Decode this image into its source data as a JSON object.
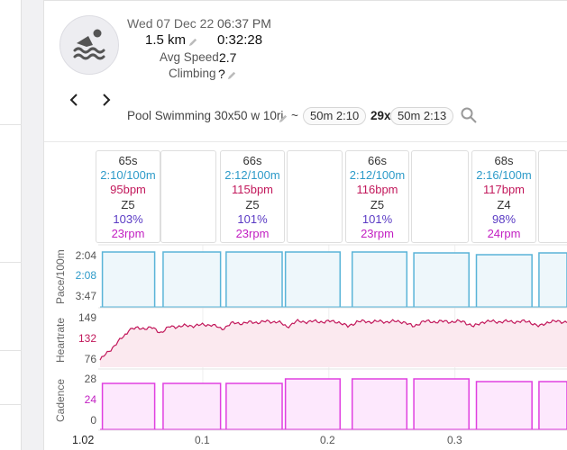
{
  "activity": {
    "date": "Wed 07 Dec 22",
    "time": "06:37 PM",
    "distance": "1.5 km",
    "duration": "0:32:28",
    "avg_speed_label": "Avg Speed",
    "avg_speed_value": "2.7",
    "climbing_label": "Climbing",
    "climbing_value": "?",
    "icon": "swimmer-icon"
  },
  "workout": {
    "name": "Pool Swimming 30x50 w 10ri",
    "tilde": "~",
    "chip1": "50m 2:10",
    "repeat": "29x",
    "chip2": "50m 2:13"
  },
  "cards": [
    {
      "dur": "65s",
      "pace": "2:10/100m",
      "hr": "95bpm",
      "zone": "Z5",
      "pct": "103%",
      "rpm": "23rpm"
    },
    {
      "dur": "66s",
      "pace": "2:12/100m",
      "hr": "115bpm",
      "zone": "Z5",
      "pct": "101%",
      "rpm": "23rpm"
    },
    {
      "dur": "66s",
      "pace": "2:12/100m",
      "hr": "116bpm",
      "zone": "Z5",
      "pct": "101%",
      "rpm": "23rpm"
    },
    {
      "dur": "68s",
      "pace": "2:16/100m",
      "hr": "117bpm",
      "zone": "Z4",
      "pct": "98%",
      "rpm": "24rpm"
    }
  ],
  "colors": {
    "pace": "#5ab4d8",
    "pace_fill": "#eef7fb",
    "hr": "#c2185b",
    "hr_fill": "#fbe9ef",
    "cadence": "#e040e0",
    "cadence_fill": "#fde8fd",
    "rest_band": "#f2f2f2"
  },
  "chart_data": [
    {
      "type": "area",
      "ylabel": "Pace/100m",
      "yticks": [
        "2:04",
        "2:08",
        "3:47"
      ],
      "highlight_tick": "2:08",
      "segments": [
        [
          0.0,
          0.035,
          "2:04"
        ],
        [
          0.065,
          0.115,
          "2:05"
        ],
        [
          0.13,
          0.18,
          "2:05"
        ],
        [
          0.195,
          0.255,
          "2:05"
        ],
        [
          0.265,
          0.325,
          "2:04"
        ],
        [
          0.345,
          0.395,
          "2:05"
        ],
        [
          0.41,
          0.46,
          "2:08"
        ],
        [
          0.475,
          0.53,
          "2:07"
        ]
      ]
    },
    {
      "type": "line",
      "ylabel": "Heartrate",
      "yticks": [
        "149",
        "132",
        "76"
      ],
      "highlight_tick": "132",
      "ylim": [
        76,
        149
      ]
    },
    {
      "type": "area",
      "ylabel": "Cadence",
      "yticks": [
        "28",
        "24",
        "0"
      ],
      "highlight_tick": "24",
      "ylim": [
        0,
        28
      ],
      "segments": [
        [
          0.0,
          0.035,
          23
        ],
        [
          0.065,
          0.115,
          23
        ],
        [
          0.13,
          0.18,
          23
        ],
        [
          0.195,
          0.255,
          25
        ],
        [
          0.265,
          0.325,
          25
        ],
        [
          0.345,
          0.395,
          25
        ],
        [
          0.41,
          0.46,
          24
        ],
        [
          0.475,
          0.53,
          24
        ]
      ]
    }
  ],
  "x_axis": {
    "start": "1.02",
    "ticks": [
      "0.1",
      "0.2",
      "0.3"
    ]
  }
}
